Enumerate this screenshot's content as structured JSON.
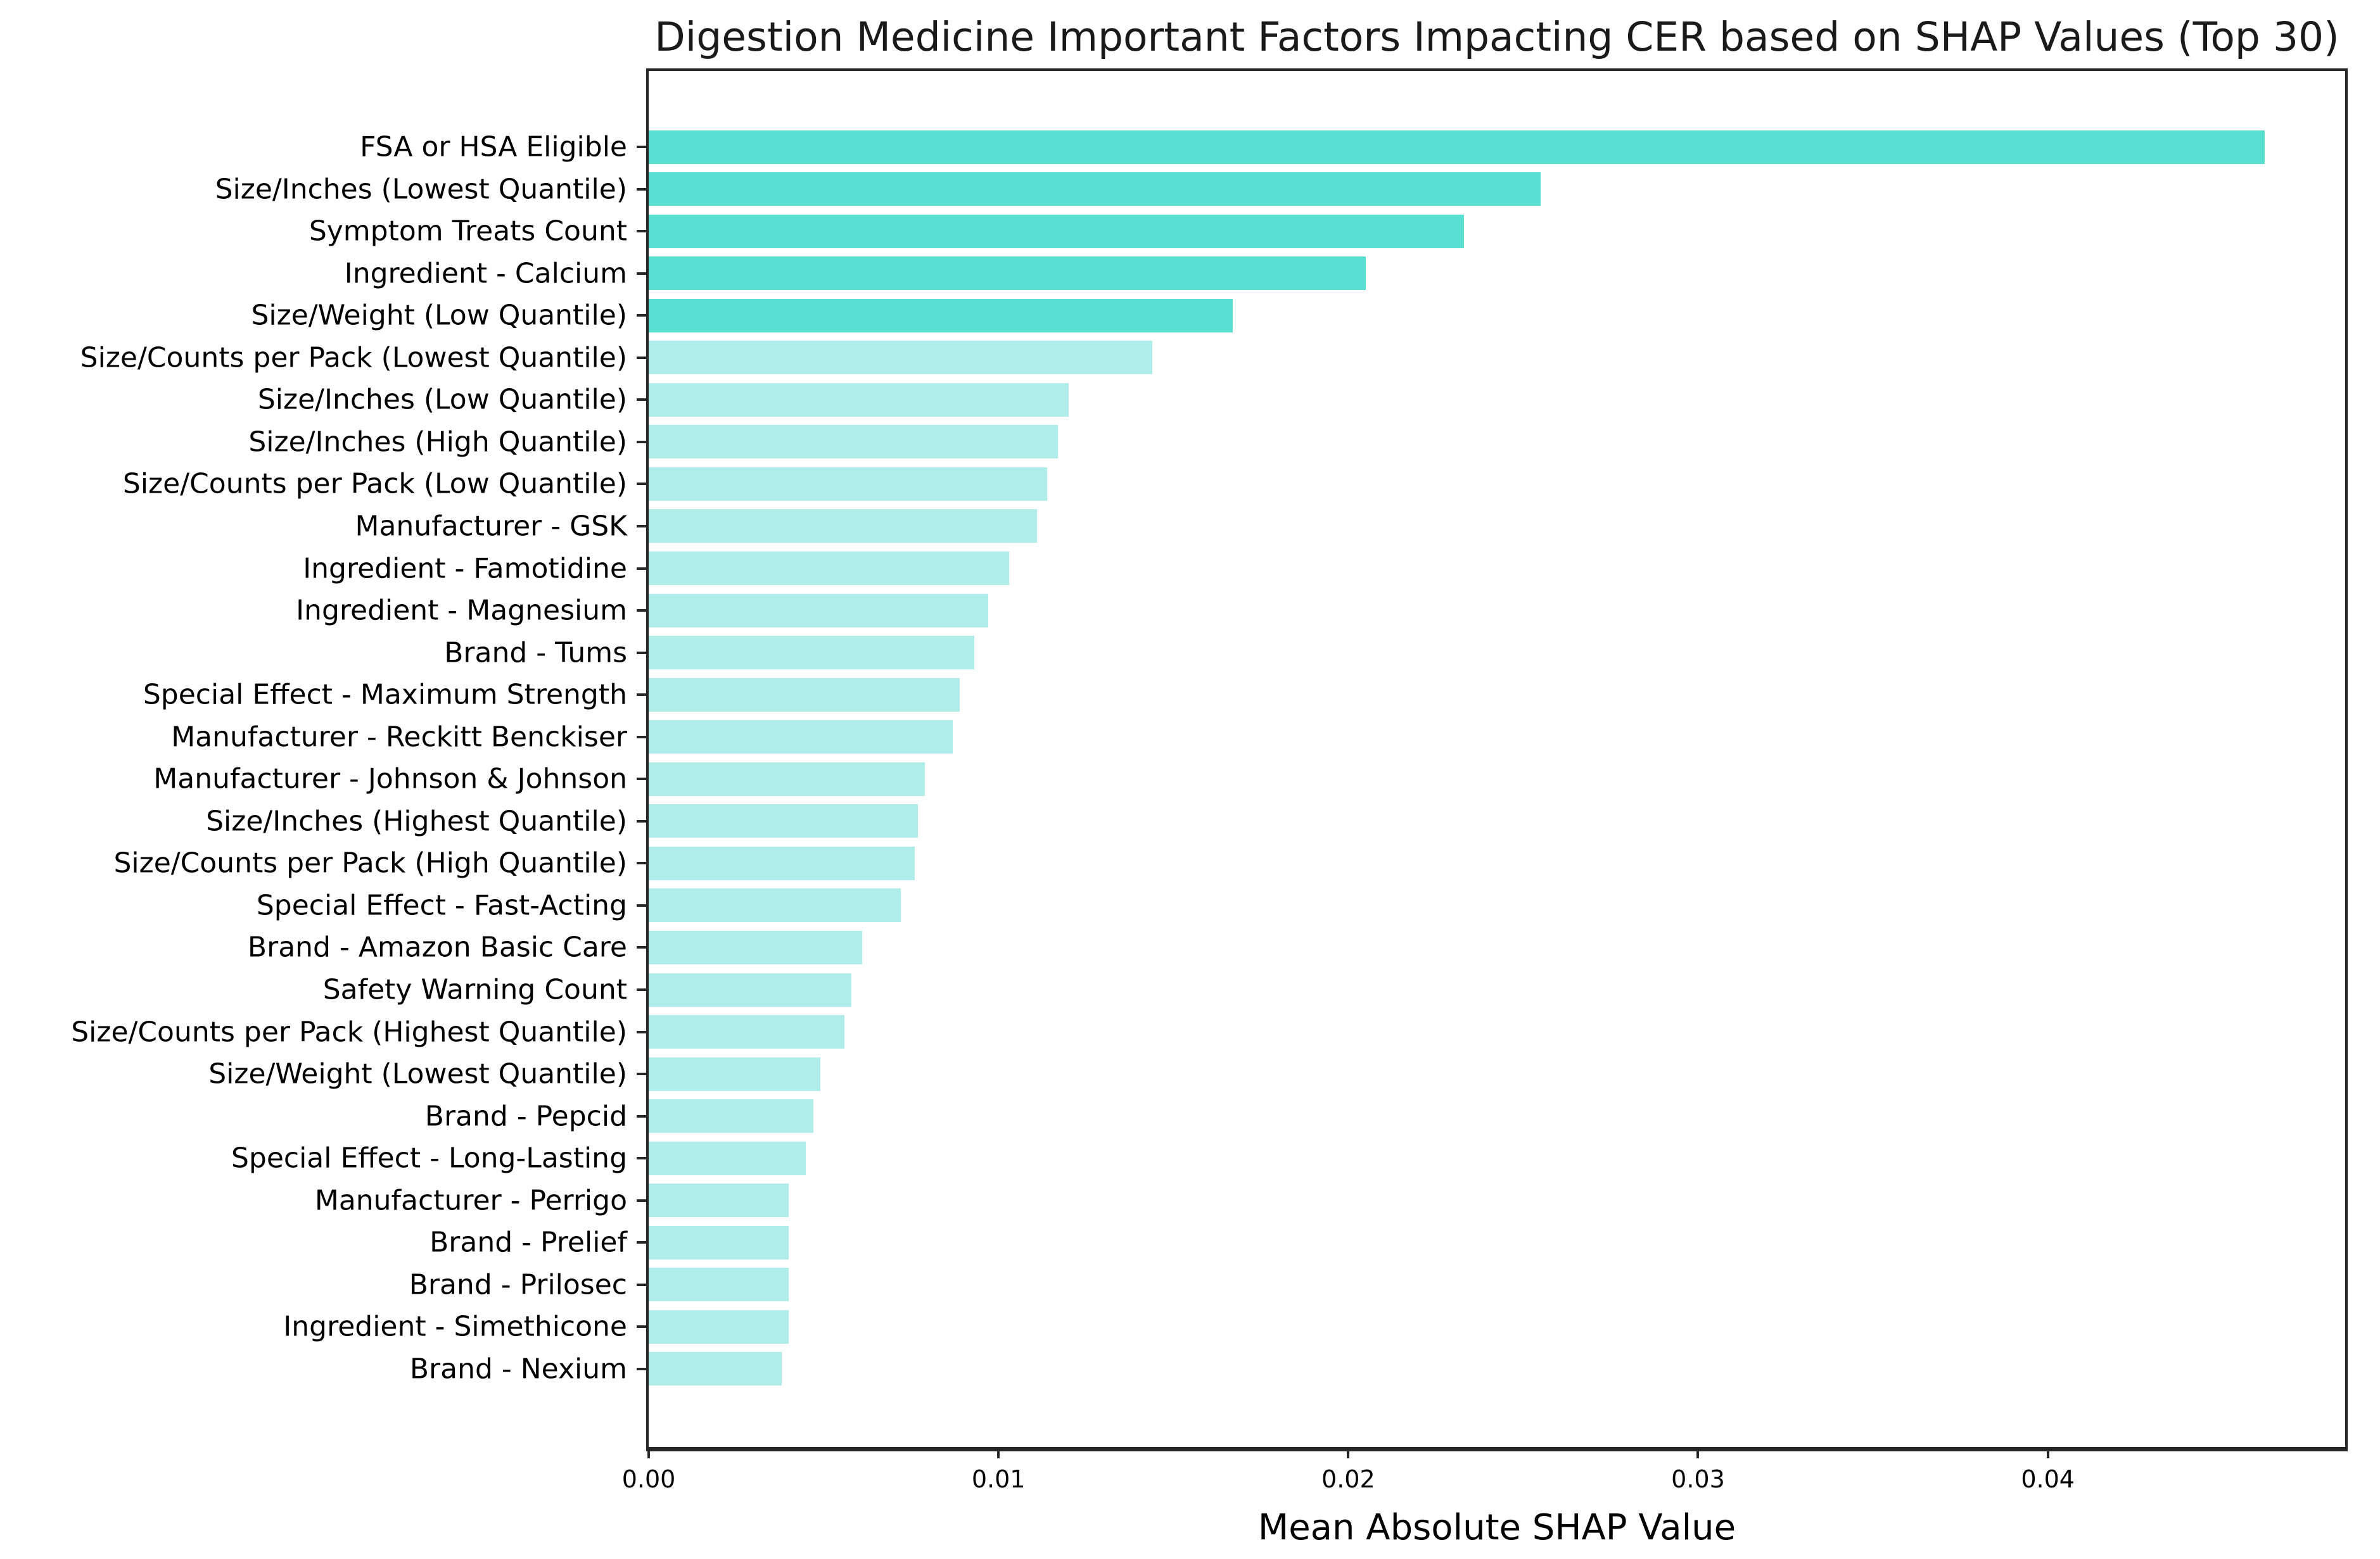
{
  "title": "Digestion Medicine Important Factors Impacting CER based on SHAP Values (Top 30)",
  "chart_data": {
    "type": "bar",
    "orientation": "horizontal",
    "title": "Digestion Medicine Important Factors Impacting CER based on SHAP Values (Top 30)",
    "xlabel": "Mean Absolute SHAP Value",
    "ylabel": "",
    "grid": false,
    "legend": false,
    "xlim": [
      0,
      0.0485
    ],
    "x_tick_values": [
      0.0,
      0.01,
      0.02,
      0.03,
      0.04
    ],
    "x_tick_labels": [
      "0.00",
      "0.01",
      "0.02",
      "0.03",
      "0.04"
    ],
    "categories": [
      "FSA or HSA Eligible",
      "Size/Inches (Lowest Quantile)",
      "Symptom Treats Count",
      "Ingredient - Calcium",
      "Size/Weight (Low Quantile)",
      "Size/Counts per Pack (Lowest Quantile)",
      "Size/Inches (Low Quantile)",
      "Size/Inches (High Quantile)",
      "Size/Counts per Pack (Low Quantile)",
      "Manufacturer - GSK",
      "Ingredient - Famotidine",
      "Ingredient - Magnesium",
      "Brand - Tums",
      "Special Effect - Maximum Strength",
      "Manufacturer - Reckitt Benckiser",
      "Manufacturer - Johnson & Johnson",
      "Size/Inches (Highest Quantile)",
      "Size/Counts per Pack (High Quantile)",
      "Special Effect - Fast-Acting",
      "Brand - Amazon Basic Care",
      "Safety Warning Count",
      "Size/Counts per Pack (Highest Quantile)",
      "Size/Weight (Lowest Quantile)",
      "Brand - Pepcid",
      "Special Effect - Long-Lasting",
      "Manufacturer - Perrigo",
      "Brand - Prelief",
      "Brand - Prilosec",
      "Ingredient - Simethicone",
      "Brand - Nexium"
    ],
    "values": [
      0.0462,
      0.0255,
      0.0233,
      0.0205,
      0.0167,
      0.0144,
      0.012,
      0.0117,
      0.0114,
      0.0111,
      0.0103,
      0.0097,
      0.0093,
      0.0089,
      0.0087,
      0.0079,
      0.0077,
      0.0076,
      0.0072,
      0.0061,
      0.0058,
      0.0056,
      0.0049,
      0.0047,
      0.0045,
      0.004,
      0.004,
      0.004,
      0.004,
      0.0038
    ],
    "highlight_top_n": 5,
    "colors": {
      "highlight_bar": "#5CDFD3",
      "base_bar": "#AEEDE9",
      "spine": "#262626",
      "text": "#000000",
      "background": "#ffffff"
    }
  }
}
